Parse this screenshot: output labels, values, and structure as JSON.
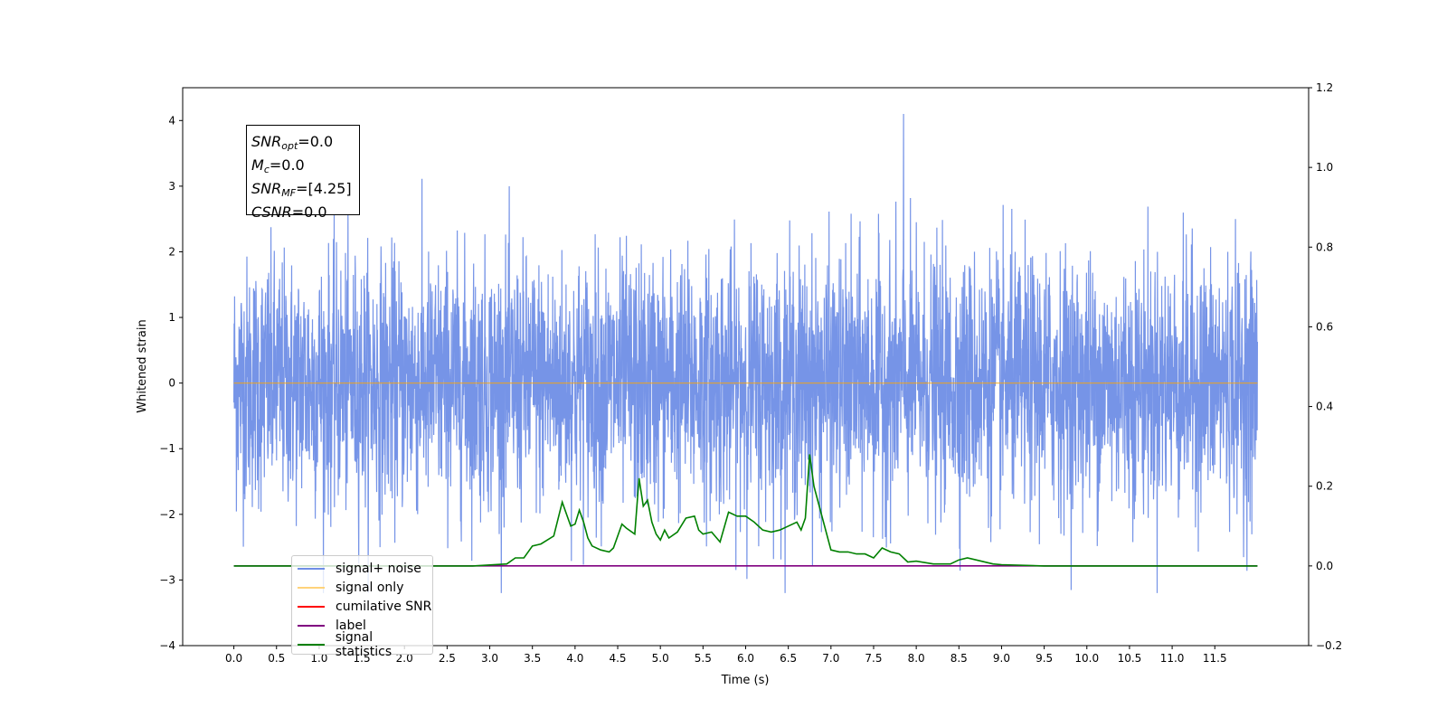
{
  "chart_data": {
    "type": "line",
    "xlabel": "Time (s)",
    "ylabel": "Whitened strain",
    "xlim": [
      -0.6,
      12.6
    ],
    "ylim": [
      -4,
      4.5
    ],
    "y2lim": [
      -0.2,
      1.2
    ],
    "x_ticks": [
      "0.0",
      "0.5",
      "1.0",
      "1.5",
      "2.0",
      "2.5",
      "3.0",
      "3.5",
      "4.0",
      "4.5",
      "5.0",
      "5.5",
      "6.0",
      "6.5",
      "7.0",
      "7.5",
      "8.0",
      "8.5",
      "9.0",
      "9.5",
      "10.0",
      "10.5",
      "11.0",
      "11.5"
    ],
    "y_ticks": [
      "4",
      "3",
      "2",
      "1",
      "0",
      "−1",
      "−2",
      "−3",
      "−4"
    ],
    "y2_ticks": [
      "1.2",
      "1.0",
      "0.8",
      "0.6",
      "0.4",
      "0.2",
      "0.0",
      "−0.2"
    ],
    "annotation": {
      "snr_opt": "=0.0",
      "mc": "=0.0",
      "snr_mf": "=[4.25]",
      "csnr": "=0.0"
    },
    "legend": {
      "placement": "lower-left",
      "entries": [
        "signal+ noise",
        "signal only",
        "cumilative SNR",
        "label",
        "signal statistics"
      ]
    },
    "colors": {
      "noise": "#6f8ee6",
      "signal": "#ffa500",
      "csnr": "#ff0000",
      "label": "#800080",
      "stats": "#008000"
    },
    "series": [
      {
        "name": "signal+ noise",
        "axis": "left",
        "description_values": {
          "t_start": 0.0,
          "t_end": 12.0,
          "std": 0.95,
          "min": -3.2,
          "max": 4.1
        }
      },
      {
        "name": "signal only",
        "axis": "left",
        "x": [
          0.0,
          12.0
        ],
        "y": [
          0.0,
          0.0
        ]
      },
      {
        "name": "label",
        "axis": "right",
        "x": [
          0.0,
          12.0
        ],
        "y": [
          0.0,
          0.0
        ]
      },
      {
        "name": "signal statistics",
        "axis": "right",
        "x": [
          0.0,
          1.0,
          2.0,
          2.8,
          3.2,
          3.3,
          3.4,
          3.5,
          3.6,
          3.75,
          3.85,
          3.9,
          3.95,
          4.0,
          4.05,
          4.1,
          4.15,
          4.2,
          4.3,
          4.4,
          4.45,
          4.55,
          4.6,
          4.7,
          4.75,
          4.8,
          4.85,
          4.9,
          4.95,
          5.0,
          5.05,
          5.1,
          5.2,
          5.3,
          5.4,
          5.45,
          5.5,
          5.6,
          5.7,
          5.8,
          5.9,
          6.0,
          6.1,
          6.2,
          6.3,
          6.4,
          6.5,
          6.6,
          6.65,
          6.7,
          6.75,
          6.8,
          6.9,
          7.0,
          7.1,
          7.2,
          7.3,
          7.4,
          7.5,
          7.6,
          7.7,
          7.8,
          7.9,
          8.0,
          8.2,
          8.4,
          8.5,
          8.6,
          8.7,
          8.9,
          9.0,
          9.5,
          10.0,
          10.5,
          11.0,
          12.0
        ],
        "y": [
          0.0,
          0.0,
          0.0,
          0.0,
          0.005,
          0.02,
          0.02,
          0.05,
          0.055,
          0.075,
          0.16,
          0.13,
          0.1,
          0.105,
          0.14,
          0.11,
          0.07,
          0.05,
          0.04,
          0.035,
          0.045,
          0.105,
          0.095,
          0.08,
          0.22,
          0.15,
          0.165,
          0.11,
          0.08,
          0.065,
          0.09,
          0.07,
          0.085,
          0.12,
          0.125,
          0.09,
          0.08,
          0.085,
          0.06,
          0.135,
          0.125,
          0.125,
          0.11,
          0.09,
          0.085,
          0.09,
          0.1,
          0.11,
          0.09,
          0.12,
          0.28,
          0.2,
          0.12,
          0.04,
          0.035,
          0.035,
          0.03,
          0.03,
          0.02,
          0.045,
          0.035,
          0.03,
          0.01,
          0.012,
          0.005,
          0.005,
          0.015,
          0.02,
          0.015,
          0.005,
          0.003,
          0.0,
          0.0,
          0.0,
          0.0,
          0.0
        ]
      }
    ]
  }
}
